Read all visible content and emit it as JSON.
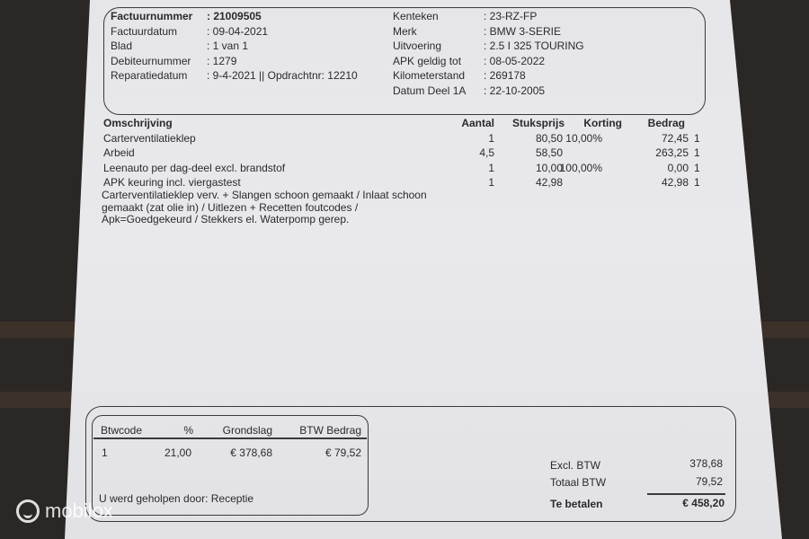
{
  "header_left": [
    {
      "label": "Factuurnummer",
      "value": ": 21009505"
    },
    {
      "label": "Factuurdatum",
      "value": ": 09-04-2021"
    },
    {
      "label": "Blad",
      "value": ": 1 van 1"
    },
    {
      "label": "Debiteurnummer",
      "value": ": 1279"
    },
    {
      "label": "Reparatiedatum",
      "value": ": 9-4-2021 || Opdrachtnr: 12210"
    }
  ],
  "header_right": [
    {
      "label": "Kenteken",
      "value": ": 23-RZ-FP"
    },
    {
      "label": "Merk",
      "value": ": BMW 3-SERIE"
    },
    {
      "label": "Uitvoering",
      "value": ": 2.5 I 325 TOURING"
    },
    {
      "label": "APK geldig tot",
      "value": ": 08-05-2022"
    },
    {
      "label": "Kilometerstand",
      "value": ": 269178"
    },
    {
      "label": "Datum Deel 1A",
      "value": ": 22-10-2005"
    }
  ],
  "items": {
    "columns": [
      "Omschrijving",
      "Aantal",
      "Stuksprijs",
      "Korting",
      "Bedrag"
    ],
    "rows": [
      {
        "desc": "Carterventilatieklep",
        "qty": "1",
        "price": "80,50",
        "discount": "10,00%",
        "amount": "72,45",
        "code": "1"
      },
      {
        "desc": "Arbeid",
        "qty": "4,5",
        "price": "58,50",
        "discount": "",
        "amount": "263,25",
        "code": "1"
      },
      {
        "desc": "Leenauto  per dag-deel excl. brandstof",
        "qty": "1",
        "price": "10,00",
        "discount": "100,00%",
        "amount": "0,00",
        "code": "1"
      },
      {
        "desc": "APK keuring incl. viergastest",
        "qty": "1",
        "price": "42,98",
        "discount": "",
        "amount": "42,98",
        "code": "1"
      }
    ],
    "notes": [
      "Carterventilatieklep verv. + Slangen schoon gemaakt / Inlaat schoon",
      "gemaakt (zat olie in) / Uitlezen + Recetten foutcodes /",
      "Apk=Goedgekeurd / Stekkers el. Waterpomp gerep."
    ]
  },
  "vat": {
    "columns": [
      "Btwcode",
      "%",
      "Grondslag",
      "BTW Bedrag"
    ],
    "row": {
      "code": "1",
      "pct": "21,00",
      "base": "€ 378,68",
      "amount": "€ 79,52"
    },
    "helped_by": "U werd geholpen door: Receptie"
  },
  "totals": {
    "excl_label": "Excl. BTW",
    "excl_value": "378,68",
    "vat_label": "Totaal BTW",
    "vat_value": "79,52",
    "pay_label": "Te betalen",
    "pay_value": "€ 458,20"
  },
  "watermark": "mobilox"
}
